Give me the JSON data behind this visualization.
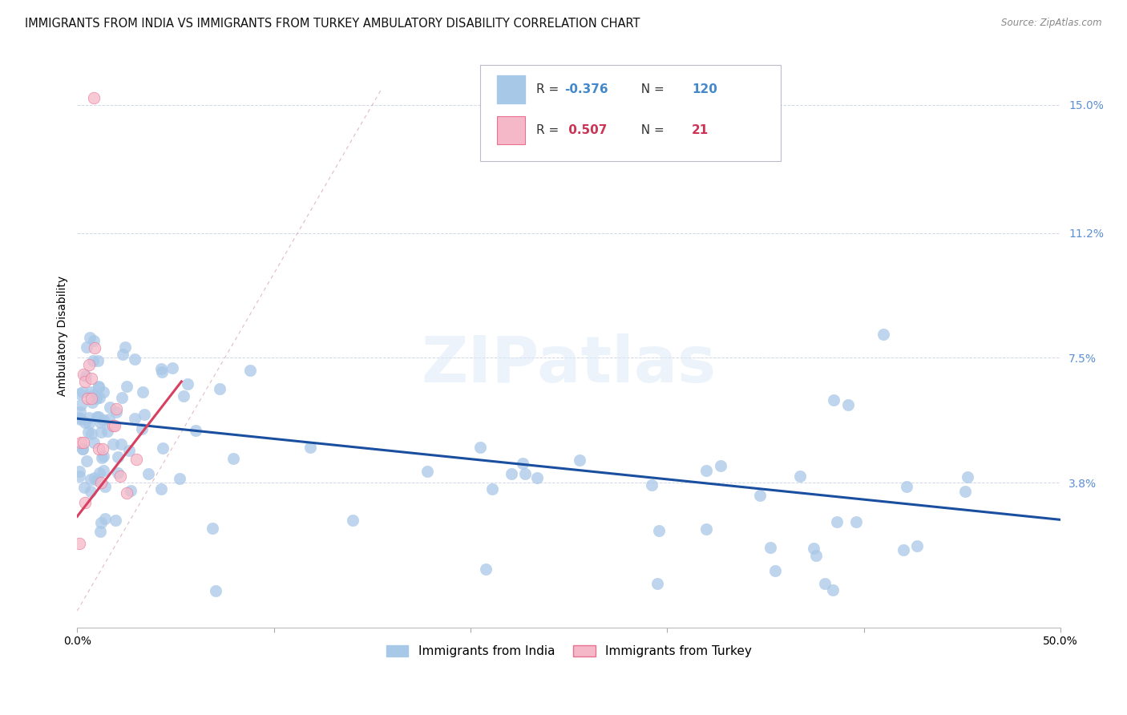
{
  "title": "IMMIGRANTS FROM INDIA VS IMMIGRANTS FROM TURKEY AMBULATORY DISABILITY CORRELATION CHART",
  "source": "Source: ZipAtlas.com",
  "ylabel": "Ambulatory Disability",
  "xlim": [
    0.0,
    0.5
  ],
  "ylim": [
    -0.005,
    0.168
  ],
  "yticks": [
    0.038,
    0.075,
    0.112,
    0.15
  ],
  "ytick_labels": [
    "3.8%",
    "7.5%",
    "11.2%",
    "15.0%"
  ],
  "xtick_positions": [
    0.0,
    0.1,
    0.2,
    0.3,
    0.4,
    0.5
  ],
  "xtick_labels": [
    "0.0%",
    "",
    "",
    "",
    "",
    "50.0%"
  ],
  "india_color": "#a8c8e8",
  "turkey_color": "#f5b8c8",
  "india_edge_color": "#8ab0d0",
  "turkey_edge_color": "#e87090",
  "india_trendline_color": "#1a4fa0",
  "turkey_trendline_color": "#d84060",
  "india_R": -0.376,
  "india_N": 120,
  "turkey_R": 0.507,
  "turkey_N": 21,
  "legend_india_label": "Immigrants from India",
  "legend_turkey_label": "Immigrants from Turkey",
  "background_color": "#ffffff",
  "grid_color": "#d0d8e8",
  "title_fontsize": 10.5,
  "axis_label_fontsize": 10,
  "tick_fontsize": 10,
  "watermark_text": "ZIPatlas",
  "legend_R_color": "#333333",
  "legend_N_color_india": "#4488cc",
  "legend_N_color_turkey": "#cc3355",
  "india_trend": {
    "x_start": 0.0,
    "x_end": 0.5,
    "y_start": 0.057,
    "y_end": 0.027
  },
  "turkey_trend": {
    "x_start": 0.0,
    "x_end": 0.053,
    "y_start": 0.028,
    "y_end": 0.068
  }
}
